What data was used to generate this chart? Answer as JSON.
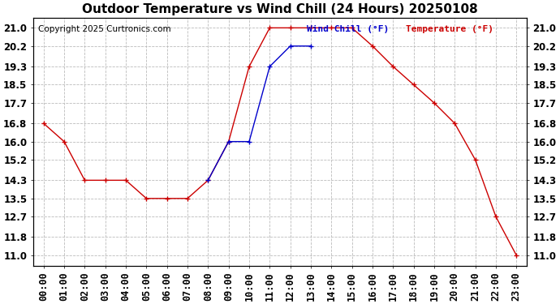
{
  "title": "Outdoor Temperature vs Wind Chill (24 Hours) 20250108",
  "copyright": "Copyright 2025 Curtronics.com",
  "x_labels": [
    "00:00",
    "01:00",
    "02:00",
    "03:00",
    "04:00",
    "05:00",
    "06:00",
    "07:00",
    "08:00",
    "09:00",
    "10:00",
    "11:00",
    "12:00",
    "13:00",
    "14:00",
    "15:00",
    "16:00",
    "17:00",
    "18:00",
    "19:00",
    "20:00",
    "21:00",
    "22:00",
    "23:00"
  ],
  "temperature": [
    16.8,
    16.0,
    14.3,
    14.3,
    14.3,
    13.5,
    13.5,
    13.5,
    14.3,
    16.0,
    19.3,
    21.0,
    21.0,
    21.0,
    21.0,
    21.0,
    20.2,
    19.3,
    18.5,
    17.7,
    16.8,
    15.2,
    12.7,
    11.0
  ],
  "wind_chill": [
    null,
    null,
    null,
    null,
    null,
    null,
    null,
    null,
    14.3,
    16.0,
    16.0,
    19.3,
    20.2,
    20.2,
    null,
    null,
    null,
    null,
    null,
    null,
    null,
    null,
    null,
    null
  ],
  "temp_color": "#cc0000",
  "wind_chill_color": "#0000cc",
  "legend_wind_chill": "Wind Chill (°F)",
  "legend_temperature": "Temperature (°F)",
  "yticks": [
    11.0,
    11.8,
    12.7,
    13.5,
    14.3,
    15.2,
    16.0,
    16.8,
    17.7,
    18.5,
    19.3,
    20.2,
    21.0
  ],
  "ylim": [
    10.55,
    21.45
  ],
  "background_color": "#ffffff",
  "grid_color": "#bbbbbb",
  "title_fontsize": 11,
  "tick_fontsize": 8.5,
  "copyright_fontsize": 7.5
}
